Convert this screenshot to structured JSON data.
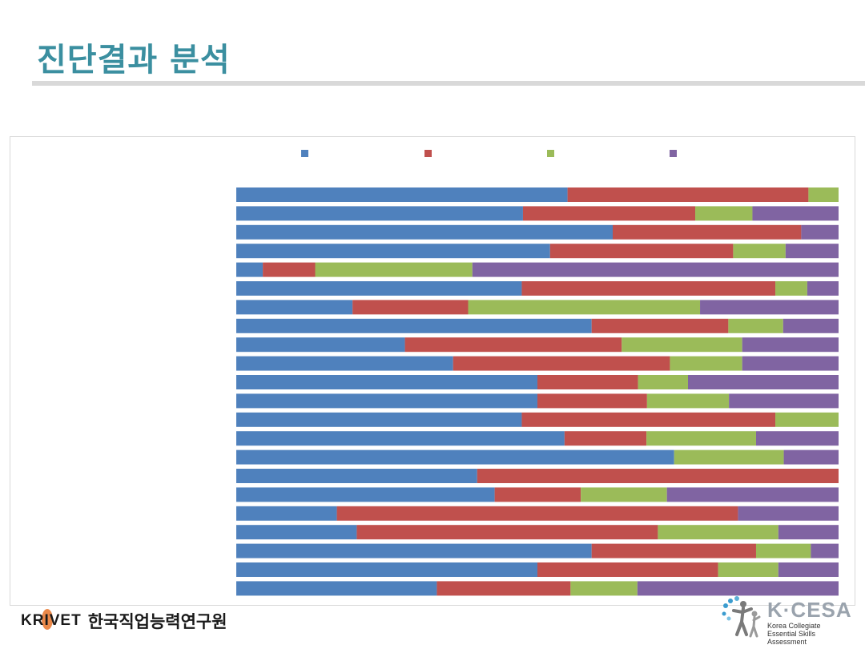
{
  "slide": {
    "title": "진단결과 분석"
  },
  "colors": {
    "series": [
      "#4f81bd",
      "#c0504d",
      "#9bbb59",
      "#8064a2"
    ],
    "title": "#3b8fa0"
  },
  "chart_data": {
    "type": "bar",
    "orientation": "horizontal",
    "stacked": "100%",
    "xlim": [
      0,
      100
    ],
    "grid": false,
    "legend": "top",
    "categories": [
      "",
      "",
      "",
      "",
      "",
      "",
      "",
      "",
      "",
      "",
      "",
      "",
      "",
      "",
      "",
      "",
      "",
      "",
      "",
      "",
      "",
      ""
    ],
    "series": [
      {
        "values": [
          55,
          47.6,
          62.5,
          52.1,
          4.4,
          47.4,
          19.3,
          59,
          28,
          36,
          50,
          50,
          47.4,
          54.5,
          72.7,
          40,
          42.9,
          16.7,
          20,
          59,
          50,
          33.3
        ]
      },
      {
        "values": [
          40,
          28.6,
          31.3,
          30.4,
          8.7,
          42.1,
          19.2,
          22.7,
          36,
          36,
          16.7,
          18.2,
          42.1,
          13.6,
          0,
          60,
          14.3,
          66.6,
          50,
          27.3,
          30,
          22.2
        ]
      },
      {
        "values": [
          5,
          9.5,
          0,
          8.7,
          26.1,
          5.3,
          38.5,
          9.1,
          20,
          12,
          8.3,
          13.6,
          10.5,
          18.2,
          18.2,
          0,
          14.3,
          0,
          20,
          9.1,
          10,
          11.1
        ]
      },
      {
        "values": [
          0,
          14.3,
          6.2,
          8.8,
          60.8,
          5.2,
          23,
          9.2,
          16,
          16,
          25,
          18.2,
          0,
          13.7,
          9.1,
          0,
          28.5,
          16.7,
          10,
          4.6,
          10,
          33.4
        ]
      }
    ]
  },
  "footer": {
    "krivet_en": "KRIVET",
    "krivet_ko": "한국직업능력연구원",
    "kcesa_name": "K·CESA",
    "kcesa_line1": "Korea Collegiate",
    "kcesa_line2": "Essential Skills Assessment"
  }
}
